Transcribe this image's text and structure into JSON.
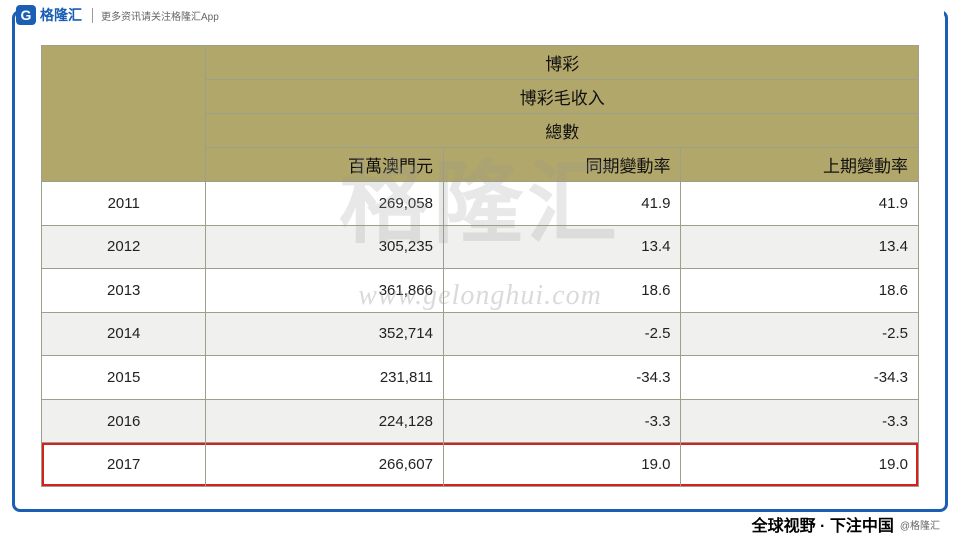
{
  "brand": {
    "logo_letter": "G",
    "logo_text": "格隆汇",
    "tagline": "更多资讯请关注格隆汇App"
  },
  "watermark": {
    "logo_text": "格隆汇",
    "url_text": "www.gelonghui.com"
  },
  "footer": {
    "slogan": "全球视野 · 下注中国",
    "handle": "@格隆汇"
  },
  "table": {
    "header_top": "博彩",
    "header_mid": "博彩毛收入",
    "header_sum": "總數",
    "columns": [
      "",
      "百萬澳門元",
      "同期變動率",
      "上期變動率"
    ],
    "col_widths_pct": [
      18,
      28,
      27,
      27
    ],
    "header_bg": "#b2a76a",
    "border_color": "#9aa08a",
    "row_alt_bg": "#f0f0ee",
    "highlight_border": "#d81e1e",
    "rows": [
      {
        "year": "2011",
        "mop": "269,058",
        "yoy": "41.9",
        "pop": "41.9"
      },
      {
        "year": "2012",
        "mop": "305,235",
        "yoy": "13.4",
        "pop": "13.4"
      },
      {
        "year": "2013",
        "mop": "361,866",
        "yoy": "18.6",
        "pop": "18.6"
      },
      {
        "year": "2014",
        "mop": "352,714",
        "yoy": "-2.5",
        "pop": "-2.5"
      },
      {
        "year": "2015",
        "mop": "231,811",
        "yoy": "-34.3",
        "pop": "-34.3"
      },
      {
        "year": "2016",
        "mop": "224,128",
        "yoy": "-3.3",
        "pop": "-3.3"
      },
      {
        "year": "2017",
        "mop": "266,607",
        "yoy": "19.0",
        "pop": "19.0",
        "highlight": true
      }
    ]
  },
  "colors": {
    "frame_border": "#1a5fb4",
    "background": "#ffffff"
  }
}
